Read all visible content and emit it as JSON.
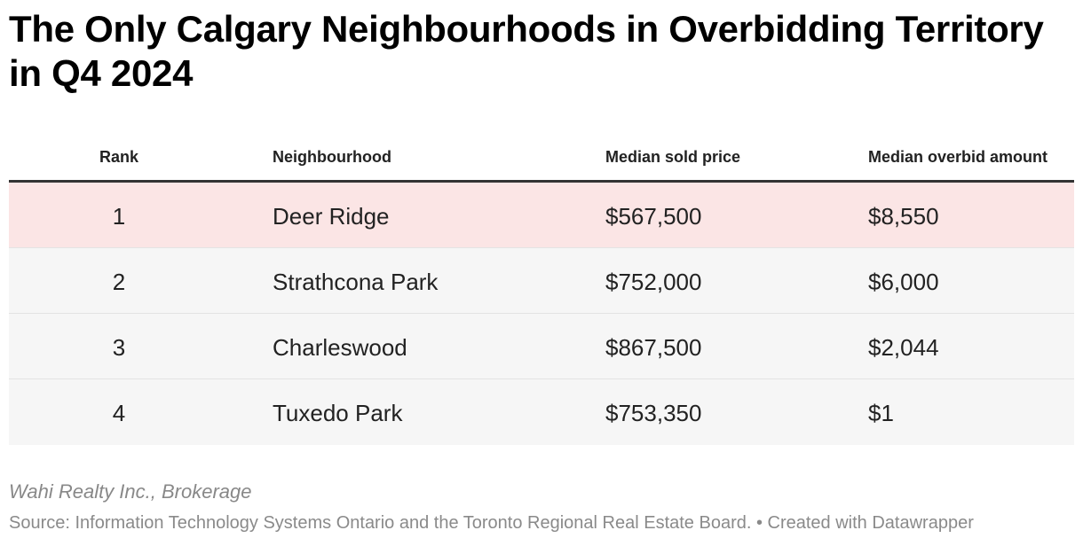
{
  "title": "The Only Calgary Neighbourhoods in Overbidding Territory in Q4 2024",
  "chart_data": {
    "type": "table",
    "columns": [
      "Rank",
      "Neighbourhood",
      "Median sold price",
      "Median overbid amount"
    ],
    "rows": [
      {
        "rank": "1",
        "neighbourhood": "Deer Ridge",
        "median_sold_price": "$567,500",
        "median_overbid_amount": "$8,550",
        "highlight": true
      },
      {
        "rank": "2",
        "neighbourhood": "Strathcona Park",
        "median_sold_price": "$752,000",
        "median_overbid_amount": "$6,000",
        "highlight": false
      },
      {
        "rank": "3",
        "neighbourhood": "Charleswood",
        "median_sold_price": "$867,500",
        "median_overbid_amount": "$2,044",
        "highlight": false
      },
      {
        "rank": "4",
        "neighbourhood": "Tuxedo Park",
        "median_sold_price": "$753,350",
        "median_overbid_amount": "$1",
        "highlight": false
      }
    ]
  },
  "footer": {
    "byline": "Wahi Realty Inc., Brokerage",
    "source": "Source: Information Technology Systems Ontario and the Toronto Regional Real Estate Board. • Created with Datawrapper"
  },
  "colors": {
    "highlight_row": "#fbe5e5",
    "row_background": "#f6f6f6",
    "header_rule": "#333333"
  }
}
